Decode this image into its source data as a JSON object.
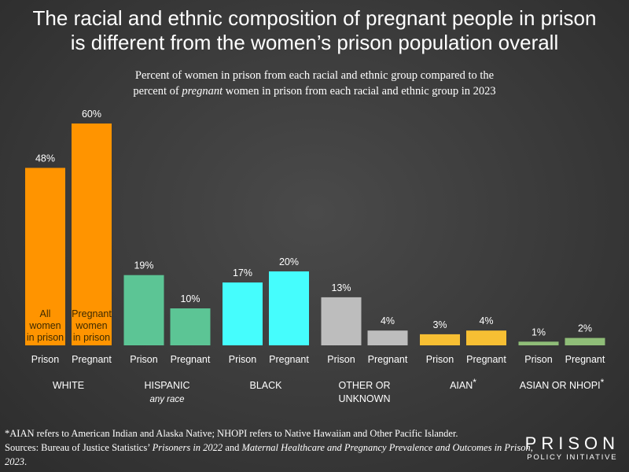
{
  "title_line1": "The racial and ethnic composition of pregnant people in prison",
  "title_line2": "is different from the women’s prison population overall",
  "subtitle_line1": "Percent of women in prison from each racial and ethnic group compared to the",
  "subtitle_line2_pre": "percent of ",
  "subtitle_line2_em": "pregnant",
  "subtitle_line2_post": " women in prison from each racial and ethnic group in 2023",
  "footnote": {
    "aian_note": "*AIAN refers to American Indian and Alaska Native; NHOPI refers to Native Hawaiian and Other Pacific Islander.",
    "sources_pre": "Sources: Bureau of Justice Statistics’ ",
    "source1": "Prisoners in 2022",
    "sources_mid": " and ",
    "source2": "Maternal Healthcare and Pregnancy Prevalence and Outcomes in Prison, 2023",
    "sources_post": "."
  },
  "logo": {
    "line1": "PRISON",
    "line2": "POLICY INITIATIVE"
  },
  "chart_data": {
    "type": "bar",
    "ylim": [
      0,
      60
    ],
    "grid": false,
    "legend": "none",
    "bar_labels": [
      "Prison",
      "Pregnant"
    ],
    "inside_labels": {
      "prison": [
        "All",
        "women",
        "in prison"
      ],
      "pregnant": [
        "Pregnant",
        "women",
        "in prison"
      ]
    },
    "groups": [
      {
        "name": "WHITE",
        "name2": "",
        "sublabel": "",
        "color": "#ff9400",
        "prison": 48,
        "pregnant": 60
      },
      {
        "name": "HISPANIC",
        "name2": "",
        "sublabel": "any race",
        "color": "#5cc595",
        "prison": 19,
        "pregnant": 10
      },
      {
        "name": "BLACK",
        "name2": "",
        "sublabel": "",
        "color": "#45fdfd",
        "prison": 17,
        "pregnant": 20
      },
      {
        "name": "OTHER OR",
        "name2": "UNKNOWN",
        "sublabel": "",
        "color": "#bdbdbd",
        "prison": 13,
        "pregnant": 4
      },
      {
        "name": "AIAN",
        "name2": "",
        "sublabel": "",
        "color": "#f7bf33",
        "prison": 3,
        "pregnant": 4,
        "asterisk": "*"
      },
      {
        "name": "ASIAN OR NHOPI",
        "name2": "",
        "sublabel": "",
        "color": "#8fbd78",
        "prison": 1,
        "pregnant": 2,
        "asterisk": "*"
      }
    ]
  }
}
